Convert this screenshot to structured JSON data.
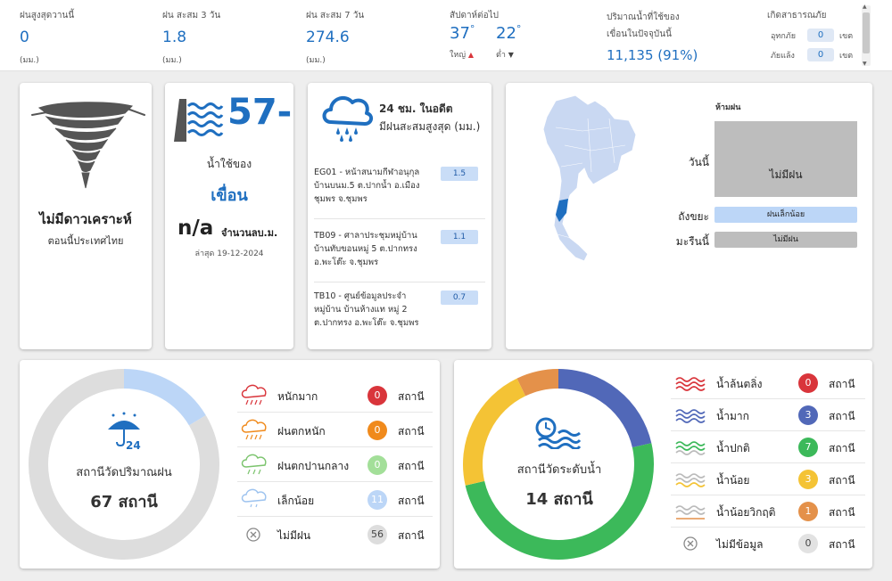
{
  "top": {
    "max_rain_today": {
      "label": "ฝนสูงสุดวานนี้",
      "value": "0",
      "unit": "(มม.)"
    },
    "rain_3d": {
      "label": "ฝน สะสม 3 วัน",
      "value": "1.8",
      "unit": "(มม.)"
    },
    "rain_7d": {
      "label": "ฝน สะสม 7 วัน",
      "value": "274.6",
      "unit": "(มม.)"
    },
    "next_week": {
      "label": "สัปดาห์ต่อไป",
      "high": {
        "value": "37",
        "deg": "°",
        "label": "ใหญ่"
      },
      "low": {
        "value": "22",
        "deg": "°",
        "label": "ต่ำ"
      }
    },
    "dam_volume": {
      "label1": "ปริมาณน้ำที่ใช้ของ",
      "label2": "เขื่อนในปัจจุบันนี้",
      "value": "11,135 (91%)"
    },
    "disaster": {
      "label": "เกิดสาธารณภัย",
      "flood": {
        "name": "อุทกภัย",
        "count": "0",
        "unit": "เขต"
      },
      "drought": {
        "name": "ภัยแล้ง",
        "count": "0",
        "unit": "เขต"
      }
    }
  },
  "storm": {
    "title": "ไม่มีดาวเคราะห์",
    "subtitle": "ตอนนี้ประเทศไทย"
  },
  "dam": {
    "big_value": "57-",
    "label1": "น้ำใช้ของ",
    "label2": "เขื่อน",
    "na": "n/a",
    "count_label": "จำนวนลบ.ม.",
    "updated": "ล่าสุด 19-12-2024"
  },
  "rain24": {
    "title_line1": "24 ชม. ในอดีต",
    "title_line2": "มีฝนสะสมสูงสุด (มม.)",
    "stations": [
      {
        "lines": [
          "EG01 - หน้าสนามกีฬาอนุกุล",
          "บ้านบนม.5 ต.ปากน้ำ อ.เมือง",
          "ชุมพร จ.ชุมพร"
        ],
        "value": "1.5"
      },
      {
        "lines": [
          "TB09 - ศาลาประชุมหมู่บ้าน",
          "บ้านทับขอนหมู่ 5 ต.ปากทรง",
          "อ.พะโต๊ะ จ.ชุมพร"
        ],
        "value": "1.1"
      },
      {
        "lines": [
          "TB10 - ศูนย์ข้อมูลประจำ",
          "หมู่บ้าน บ้านห้างแท หมู่ 2",
          "ต.ปากทรง อ.พะโต๊ะ จ.ชุมพร"
        ],
        "value": "0.7"
      }
    ]
  },
  "forecast": {
    "title": "ห้ามฝน",
    "rows": [
      {
        "day": "วันนี้",
        "text": "ไม่มีฝน",
        "color": "#bdbdbd"
      },
      {
        "day": "ถังขยะ",
        "text": "ฝนเล็กน้อย",
        "color": "#bcd6f7"
      },
      {
        "day": "มะรืนนี้",
        "text": "ไม่มีฝน",
        "color": "#bdbdbd"
      }
    ],
    "map_highlight_color": "#1f6fc0",
    "map_base_color": "#c9d8f2"
  },
  "rain_stations": {
    "label": "สถานีวัดปริมาณฝน",
    "total": "67 สถานี",
    "icon_text": "24",
    "unit": "สถานี",
    "levels": [
      {
        "name": "หนักมาก",
        "count": 0,
        "color": "#d9353b",
        "icon": "heavy-rain-icon"
      },
      {
        "name": "ฝนตกหนัก",
        "count": 0,
        "color": "#f08a1c",
        "icon": "heavy-rain-icon"
      },
      {
        "name": "ฝนตกปานกลาง",
        "count": 0,
        "color": "#a3df99",
        "icon": "moderate-rain-icon"
      },
      {
        "name": "เล็กน้อย",
        "count": 11,
        "color": "#bcd6f7",
        "icon": "light-rain-icon"
      },
      {
        "name": "ไม่มีฝน",
        "count": 56,
        "color": "#dddddd",
        "icon": "no-rain-icon"
      }
    ]
  },
  "water_stations": {
    "label": "สถานีวัดระดับน้ำ",
    "total": "14 สถานี",
    "unit": "สถานี",
    "levels": [
      {
        "name": "น้ำล้นตลิ่ง",
        "count": 0,
        "color": "#d9353b"
      },
      {
        "name": "น้ำมาก",
        "count": 3,
        "color": "#5168b8"
      },
      {
        "name": "น้ำปกติ",
        "count": 7,
        "color": "#3cb95a"
      },
      {
        "name": "น้ำน้อย",
        "count": 3,
        "color": "#f4c335"
      },
      {
        "name": "น้ำน้อยวิกฤติ",
        "count": 1,
        "color": "#e4914a"
      },
      {
        "name": "ไม่มีข้อมูล",
        "count": 0,
        "color": "#e2e2e2"
      }
    ]
  }
}
